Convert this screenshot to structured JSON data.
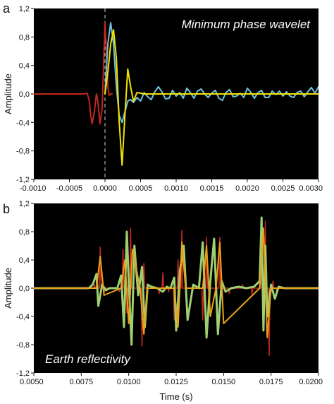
{
  "chart_data": [
    {
      "type": "line",
      "panel_label": "a",
      "annotation": "Minimum phase wavelet",
      "xlabel": "",
      "ylabel": "Amplitude",
      "xlim": [
        -0.001,
        0.003
      ],
      "ylim": [
        -1.2,
        1.2
      ],
      "grid": false,
      "background": "#000000",
      "x_ticks": [
        "-0.0010",
        "-0.0005",
        "0.0000",
        "0.0005",
        "0.0010",
        "0.0015",
        "0.0020",
        "0.0025",
        "0.0030"
      ],
      "y_ticks": [
        "-1,2",
        "-0,8",
        "-0,4",
        "0,0",
        "0,4",
        "0,8",
        "1,2"
      ],
      "marker_line_x": 0.0,
      "series": [
        {
          "color": "#c0281e",
          "x": [
            -0.001,
            -0.0003,
            -0.00025,
            -0.00022,
            -0.0002,
            -0.00018,
            -0.00015,
            -0.00012,
            -0.0001,
            -7e-05,
            -4e-05,
            -2e-05,
            0.0,
            2e-05,
            4e-05,
            6e-05,
            8e-05,
            0.0001
          ],
          "y": [
            0.0,
            0.0,
            0.01,
            -0.1,
            -0.3,
            -0.42,
            -0.25,
            0.0,
            -0.1,
            -0.42,
            -0.2,
            0.4,
            1.0,
            0.6,
            0.1,
            -0.02,
            0.0,
            0.0
          ]
        },
        {
          "color": "#6ec3e0",
          "x": [
            0.0,
            4e-05,
            8e-05,
            0.00012,
            0.00016,
            0.0002,
            0.00024,
            0.00028,
            0.00032,
            0.00036,
            0.0004,
            0.00045,
            0.0005,
            0.00055,
            0.0006,
            0.00065,
            0.0007,
            0.00075,
            0.0008,
            0.00085,
            0.0009,
            0.00095,
            0.001,
            0.00105,
            0.0011,
            0.00115,
            0.0012,
            0.00125,
            0.0013,
            0.00135,
            0.0014,
            0.00145,
            0.0015,
            0.00155,
            0.0016,
            0.00165,
            0.0017,
            0.00175,
            0.0018,
            0.00185,
            0.0019,
            0.00195,
            0.002,
            0.00205,
            0.0021,
            0.00215,
            0.0022,
            0.00225,
            0.0023,
            0.00235,
            0.0024,
            0.00245,
            0.0025,
            0.00255,
            0.0026,
            0.00265,
            0.0027,
            0.00275,
            0.0028,
            0.00285,
            0.0029,
            0.00295,
            0.003
          ],
          "y": [
            0.0,
            0.7,
            1.0,
            0.7,
            0.1,
            -0.3,
            -0.4,
            -0.25,
            -0.1,
            -0.08,
            -0.12,
            -0.05,
            -0.1,
            0.02,
            -0.04,
            -0.08,
            0.03,
            0.1,
            0.03,
            -0.07,
            -0.06,
            0.05,
            -0.03,
            0.02,
            -0.06,
            0.08,
            0.02,
            -0.06,
            0.04,
            0.07,
            0.0,
            -0.05,
            0.01,
            0.05,
            -0.06,
            -0.09,
            0.02,
            0.06,
            -0.04,
            -0.03,
            0.01,
            -0.05,
            0.08,
            0.02,
            -0.06,
            0.02,
            0.05,
            -0.05,
            -0.05,
            0.04,
            -0.01,
            0.04,
            -0.03,
            0.03,
            -0.03,
            -0.05,
            0.02,
            0.04,
            -0.04,
            0.03,
            0.09,
            0.01,
            0.1
          ]
        },
        {
          "color": "#f2e400",
          "x": [
            0.0,
            4e-05,
            8e-05,
            0.00012,
            0.00016,
            0.0002,
            0.00024,
            0.00028,
            0.00032,
            0.00036,
            0.0004,
            0.00045,
            0.0005,
            0.00055,
            0.0006,
            0.0008,
            0.001,
            0.0015,
            0.002,
            0.0025,
            0.003
          ],
          "y": [
            0.0,
            0.3,
            0.7,
            0.9,
            0.5,
            -0.4,
            -1.0,
            -0.3,
            0.35,
            0.1,
            -0.1,
            0.02,
            0.01,
            0.0,
            0.0,
            0.0,
            0.0,
            0.0,
            0.0,
            0.0,
            0.0
          ]
        }
      ]
    },
    {
      "type": "line",
      "panel_label": "b",
      "annotation": "Earth reflectivity",
      "xlabel": "Time (s)",
      "ylabel": "Amplitude",
      "xlim": [
        0.005,
        0.02
      ],
      "ylim": [
        -1.2,
        1.2
      ],
      "grid": false,
      "background": "#000000",
      "x_ticks": [
        "0.0050",
        "0.0075",
        "0.0100",
        "0.0125",
        "0.0150",
        "0.0175",
        "0.0200"
      ],
      "y_ticks": [
        "-1,2",
        "-0,8",
        "-0,4",
        "0,0",
        "0,4",
        "0,8",
        "1,2"
      ],
      "series": [
        {
          "color": "#c0281e",
          "spikes": [
            [
              0.0082,
              0.05
            ],
            [
              0.0085,
              0.58
            ],
            [
              0.0087,
              -0.08
            ],
            [
              0.0095,
              -0.05
            ],
            [
              0.0097,
              0.55
            ],
            [
              0.0099,
              -0.35
            ],
            [
              0.0101,
              0.85
            ],
            [
              0.0105,
              -0.1
            ],
            [
              0.0107,
              -0.82
            ],
            [
              0.0108,
              0.35
            ],
            [
              0.0116,
              -0.08
            ],
            [
              0.0118,
              0.22
            ],
            [
              0.0121,
              -0.05
            ],
            [
              0.0124,
              -0.45
            ],
            [
              0.0126,
              0.4
            ],
            [
              0.0128,
              0.82
            ],
            [
              0.0134,
              0.05
            ],
            [
              0.0139,
              -0.45
            ],
            [
              0.0141,
              0.72
            ],
            [
              0.0146,
              -0.12
            ],
            [
              0.0148,
              0.72
            ],
            [
              0.0153,
              -0.08
            ],
            [
              0.016,
              0.05
            ],
            [
              0.0165,
              -0.08
            ],
            [
              0.017,
              0.42
            ],
            [
              0.0172,
              0.95
            ],
            [
              0.0174,
              -0.95
            ],
            [
              0.0176,
              0.1
            ],
            [
              0.0178,
              -0.05
            ]
          ]
        },
        {
          "color": "#9ed071",
          "x": [
            0.005,
            0.0079,
            0.0081,
            0.0083,
            0.0084,
            0.0085,
            0.0086,
            0.0088,
            0.009,
            0.0094,
            0.0096,
            0.00975,
            0.0099,
            0.01,
            0.01015,
            0.0103,
            0.0105,
            0.0107,
            0.01085,
            0.011,
            0.0112,
            0.0115,
            0.0118,
            0.012,
            0.0122,
            0.0124,
            0.0125,
            0.0127,
            0.0129,
            0.0131,
            0.0134,
            0.0137,
            0.0139,
            0.0141,
            0.0143,
            0.0145,
            0.0147,
            0.0149,
            0.0151,
            0.0154,
            0.0158,
            0.0162,
            0.0166,
            0.0169,
            0.017,
            0.0171,
            0.0172,
            0.0173,
            0.0175,
            0.0177,
            0.0179,
            0.0182,
            0.0186,
            0.019,
            0.0195,
            0.02
          ],
          "y": [
            0.0,
            0.0,
            0.05,
            0.2,
            -0.25,
            -0.1,
            0.05,
            -0.03,
            0.0,
            0.0,
            0.18,
            -0.55,
            0.8,
            0.1,
            -0.8,
            0.6,
            -0.1,
            0.3,
            -0.55,
            0.05,
            0.02,
            0.0,
            -0.05,
            0.02,
            0.0,
            0.15,
            -0.6,
            0.25,
            0.6,
            -0.45,
            0.05,
            0.0,
            0.65,
            -0.7,
            0.1,
            0.7,
            -0.65,
            0.1,
            -0.05,
            0.0,
            0.02,
            0.0,
            0.02,
            0.1,
            1.0,
            -0.6,
            0.6,
            -0.4,
            0.05,
            -0.15,
            0.02,
            0.0,
            0.0,
            0.0,
            0.0,
            0.0
          ]
        },
        {
          "color": "#e9a21b",
          "x": [
            0.005,
            0.0083,
            0.0085,
            0.0087,
            0.0096,
            0.0098,
            0.01,
            0.0102,
            0.0106,
            0.0108,
            0.011,
            0.0124,
            0.0126,
            0.0128,
            0.013,
            0.0139,
            0.0141,
            0.0143,
            0.0146,
            0.0148,
            0.015,
            0.0169,
            0.0171,
            0.0173,
            0.0175,
            0.02
          ],
          "y": [
            0.0,
            0.0,
            0.45,
            -0.1,
            0.0,
            0.4,
            -0.5,
            0.55,
            0.0,
            -0.65,
            0.0,
            0.0,
            -0.55,
            0.65,
            0.0,
            0.0,
            0.6,
            -0.4,
            0.0,
            0.65,
            -0.5,
            0.0,
            0.85,
            -0.7,
            0.0,
            0.0
          ]
        }
      ]
    }
  ]
}
